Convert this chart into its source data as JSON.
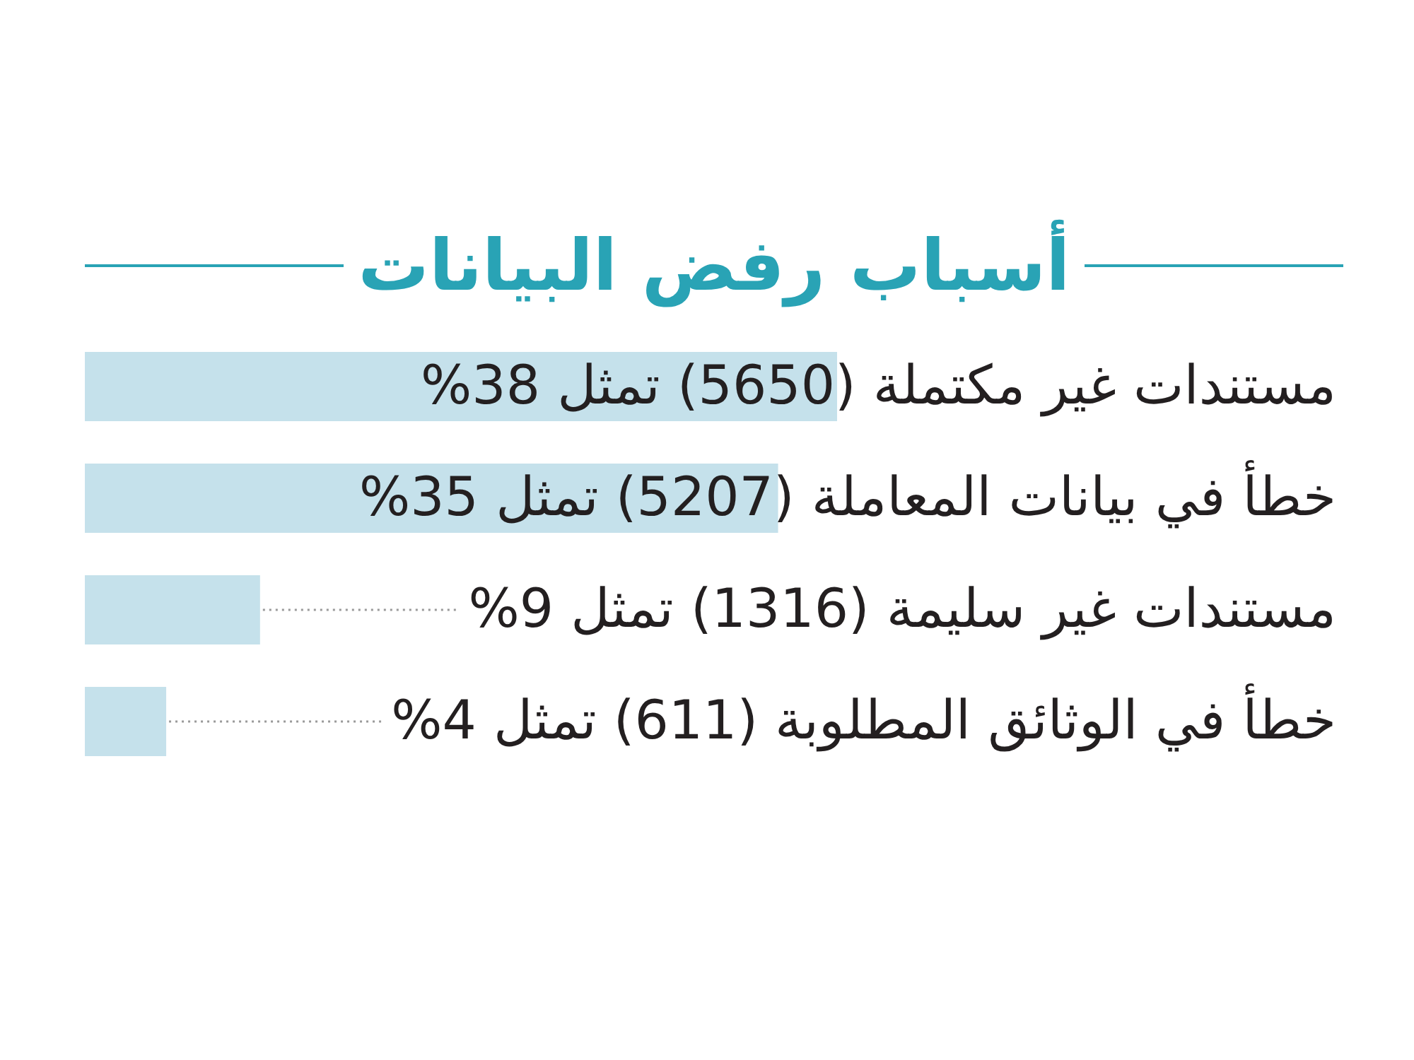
{
  "chart_data": {
    "type": "bar",
    "orientation": "horizontal",
    "title": "أسباب رفض البيانات",
    "categories": [
      "مستندات غير مكتملة",
      "خطأ في بيانات المعاملة",
      "مستندات غير سليمة",
      "خطأ في الوثائق المطلوبة"
    ],
    "values": [
      5650,
      5207,
      1316,
      611
    ],
    "color": "#c5e1eb",
    "value_labels": [
      "(5650) تمثل 38%",
      "(5207) تمثل 35%",
      "(1316) تمثل 9%",
      "(611) تمثل 4%"
    ],
    "tick_labels": "y"
  }
}
